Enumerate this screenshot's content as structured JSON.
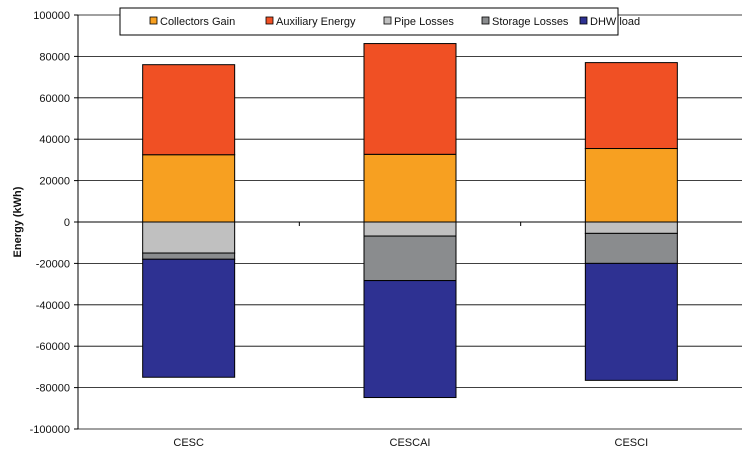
{
  "chart_data": {
    "type": "bar",
    "stacked": true,
    "categories": [
      "CESC",
      "CESCAI",
      "CESCI"
    ],
    "ylabel": "Energy (kWh)",
    "xlabel": "",
    "ylim": [
      -100000,
      100000
    ],
    "yticks": [
      100000,
      80000,
      60000,
      40000,
      20000,
      0,
      -20000,
      -40000,
      -60000,
      -80000,
      -100000
    ],
    "grid": true,
    "legend_position": "top",
    "legend_order": [
      "Collectors Gain",
      "Auxiliary Energy",
      "Pipe Losses",
      "Storage Losses",
      "DHW load"
    ],
    "series": [
      {
        "name": "Collectors Gain",
        "color": "#F7A021",
        "values": [
          32500,
          32700,
          35500
        ]
      },
      {
        "name": "Auxiliary Energy",
        "color": "#F05024",
        "values": [
          43500,
          53500,
          41500
        ]
      },
      {
        "name": "Pipe Losses",
        "color": "#C0C0C0",
        "values": [
          -15000,
          -6800,
          -5500
        ]
      },
      {
        "name": "Storage Losses",
        "color": "#8A8C8E",
        "values": [
          -3000,
          -21500,
          -14500
        ]
      },
      {
        "name": "DHW load",
        "color": "#2E3192",
        "values": [
          -57000,
          -56500,
          -56500
        ]
      }
    ]
  }
}
